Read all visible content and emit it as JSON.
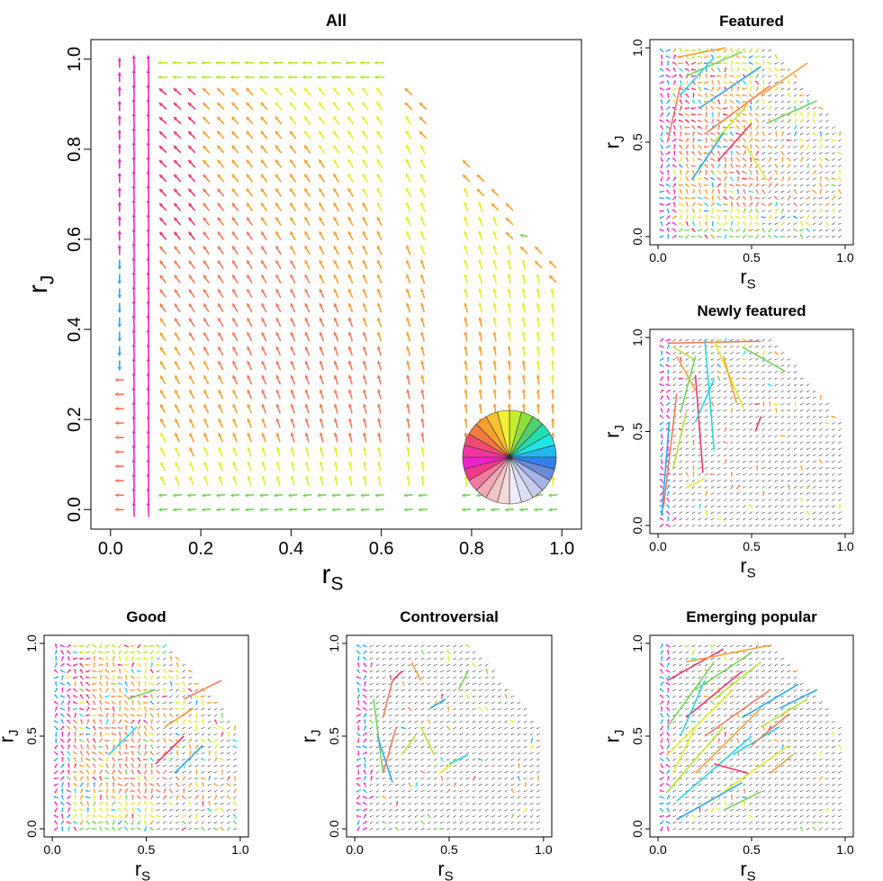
{
  "figure": {
    "colors": {
      "axis": "#000000",
      "small_arrow": "#555555"
    }
  },
  "chart_data": [
    {
      "id": "all",
      "type": "vector_field",
      "title": "All",
      "xlabel_main": "r",
      "xlabel_sub": "S",
      "ylabel_main": "r",
      "ylabel_sub": "J",
      "xlim": [
        0,
        1
      ],
      "ylim": [
        0,
        1
      ],
      "xticks": [
        0,
        0.2,
        0.4,
        0.6,
        0.8,
        1
      ],
      "xtick_labels": [
        "0.0",
        "0.2",
        "0.4",
        "0.6",
        "0.8",
        "1.0"
      ],
      "yticks": [
        0,
        0.2,
        0.4,
        0.6,
        0.8,
        1
      ],
      "ytick_labels": [
        "0.0",
        "0.2",
        "0.4",
        "0.6",
        "0.8",
        "1.0"
      ],
      "field": "all",
      "has_color_wheel": true
    },
    {
      "id": "featured",
      "type": "vector_field",
      "title": "Featured",
      "xlabel_main": "r",
      "xlabel_sub": "S",
      "ylabel_main": "r",
      "ylabel_sub": "J",
      "xlim": [
        0,
        1
      ],
      "ylim": [
        0,
        1
      ],
      "xticks": [
        0,
        0.5,
        1
      ],
      "xtick_labels": [
        "0.0",
        "0.5",
        "1.0"
      ],
      "yticks": [
        0,
        0.5,
        1
      ],
      "ytick_labels": [
        "0.0",
        "0.5",
        "1.0"
      ],
      "field": "featured",
      "long_segments": [
        [
          0.1,
          0.95,
          0.36,
          1.0
        ],
        [
          0.15,
          0.85,
          0.45,
          0.98
        ],
        [
          0.22,
          0.68,
          0.55,
          0.9
        ],
        [
          0.26,
          0.55,
          0.6,
          0.8
        ],
        [
          0.3,
          0.5,
          0.48,
          0.7
        ],
        [
          0.47,
          0.48,
          0.58,
          0.3
        ],
        [
          0.12,
          0.75,
          0.3,
          0.95
        ],
        [
          0.32,
          0.4,
          0.5,
          0.6
        ],
        [
          0.55,
          0.75,
          0.8,
          0.92
        ],
        [
          0.58,
          0.6,
          0.85,
          0.72
        ],
        [
          0.18,
          0.3,
          0.35,
          0.55
        ],
        [
          0.05,
          0.5,
          0.12,
          0.8
        ]
      ]
    },
    {
      "id": "newly_featured",
      "type": "vector_field",
      "title": "Newly featured",
      "xlabel_main": "r",
      "xlabel_sub": "S",
      "ylabel_main": "r",
      "ylabel_sub": "J",
      "xlim": [
        0,
        1
      ],
      "ylim": [
        0,
        1
      ],
      "xticks": [
        0,
        0.5,
        1
      ],
      "xtick_labels": [
        "0.0",
        "0.5",
        "1.0"
      ],
      "yticks": [
        0,
        0.5,
        1
      ],
      "ytick_labels": [
        "0.0",
        "0.5",
        "1.0"
      ],
      "field": "newly",
      "long_segments": [
        [
          0.05,
          0.97,
          0.55,
          0.98
        ],
        [
          0.08,
          0.95,
          0.2,
          0.88
        ],
        [
          0.3,
          0.98,
          0.46,
          0.62
        ],
        [
          0.25,
          0.99,
          0.3,
          0.4
        ],
        [
          0.2,
          0.8,
          0.24,
          0.28
        ],
        [
          0.35,
          0.9,
          0.42,
          0.65
        ],
        [
          0.45,
          0.95,
          0.68,
          0.82
        ],
        [
          0.02,
          0.05,
          0.06,
          0.55
        ],
        [
          0.03,
          0.1,
          0.1,
          0.7
        ],
        [
          0.08,
          0.3,
          0.15,
          0.6
        ],
        [
          0.15,
          0.2,
          0.25,
          0.25
        ],
        [
          0.2,
          0.55,
          0.3,
          0.78
        ],
        [
          0.52,
          0.5,
          0.55,
          0.58
        ],
        [
          0.1,
          0.9,
          0.2,
          0.72
        ],
        [
          0.12,
          0.6,
          0.2,
          0.9
        ]
      ]
    },
    {
      "id": "good",
      "type": "vector_field",
      "title": "Good",
      "xlabel_main": "r",
      "xlabel_sub": "S",
      "ylabel_main": "r",
      "ylabel_sub": "J",
      "xlim": [
        0,
        1
      ],
      "ylim": [
        0,
        1
      ],
      "xticks": [
        0,
        0.5,
        1
      ],
      "xtick_labels": [
        "0.0",
        "0.5",
        "1.0"
      ],
      "yticks": [
        0,
        0.5,
        1
      ],
      "ytick_labels": [
        "0.0",
        "0.5",
        "1.0"
      ],
      "field": "good",
      "long_segments": [
        [
          0.3,
          0.4,
          0.45,
          0.55
        ],
        [
          0.55,
          0.35,
          0.7,
          0.5
        ],
        [
          0.6,
          0.55,
          0.75,
          0.65
        ],
        [
          0.4,
          0.7,
          0.55,
          0.75
        ],
        [
          0.65,
          0.3,
          0.8,
          0.45
        ],
        [
          0.7,
          0.7,
          0.9,
          0.8
        ]
      ]
    },
    {
      "id": "controversial",
      "type": "vector_field",
      "title": "Controversial",
      "xlabel_main": "r",
      "xlabel_sub": "S",
      "ylabel_main": "r",
      "ylabel_sub": "J",
      "xlim": [
        0,
        1
      ],
      "ylim": [
        0,
        1
      ],
      "xticks": [
        0,
        0.5,
        1
      ],
      "xtick_labels": [
        "0.0",
        "0.5",
        "1.0"
      ],
      "yticks": [
        0,
        0.5,
        1
      ],
      "ytick_labels": [
        "0.0",
        "0.5",
        "1.0"
      ],
      "field": "controversial",
      "long_segments": [
        [
          0.1,
          0.7,
          0.15,
          0.3
        ],
        [
          0.12,
          0.5,
          0.2,
          0.25
        ],
        [
          0.15,
          0.3,
          0.22,
          0.55
        ],
        [
          0.35,
          0.55,
          0.42,
          0.4
        ],
        [
          0.45,
          0.3,
          0.55,
          0.38
        ],
        [
          0.5,
          0.35,
          0.6,
          0.4
        ],
        [
          0.2,
          0.8,
          0.25,
          0.85
        ],
        [
          0.3,
          0.9,
          0.35,
          0.8
        ],
        [
          0.55,
          0.75,
          0.6,
          0.85
        ],
        [
          0.4,
          0.65,
          0.48,
          0.7
        ],
        [
          0.15,
          0.6,
          0.2,
          0.8
        ],
        [
          0.25,
          0.4,
          0.32,
          0.5
        ]
      ]
    },
    {
      "id": "emerging_popular",
      "type": "vector_field",
      "title": "Emerging popular",
      "xlabel_main": "r",
      "xlabel_sub": "S",
      "ylabel_main": "r",
      "ylabel_sub": "J",
      "xlim": [
        0,
        1
      ],
      "ylim": [
        0,
        1
      ],
      "xticks": [
        0,
        0.5,
        1
      ],
      "xtick_labels": [
        "0.0",
        "0.5",
        "1.0"
      ],
      "yticks": [
        0,
        0.5,
        1
      ],
      "ytick_labels": [
        "0.0",
        "0.5",
        "1.0"
      ],
      "field": "emerging",
      "long_segments": [
        [
          0.05,
          0.2,
          0.35,
          0.55
        ],
        [
          0.05,
          0.4,
          0.4,
          0.75
        ],
        [
          0.1,
          0.15,
          0.5,
          0.5
        ],
        [
          0.15,
          0.6,
          0.45,
          0.85
        ],
        [
          0.2,
          0.3,
          0.55,
          0.65
        ],
        [
          0.05,
          0.55,
          0.3,
          0.9
        ],
        [
          0.1,
          0.05,
          0.45,
          0.25
        ],
        [
          0.25,
          0.5,
          0.6,
          0.75
        ],
        [
          0.3,
          0.7,
          0.55,
          0.9
        ],
        [
          0.35,
          0.2,
          0.7,
          0.45
        ],
        [
          0.4,
          0.4,
          0.65,
          0.55
        ],
        [
          0.05,
          0.8,
          0.35,
          0.97
        ],
        [
          0.15,
          0.9,
          0.6,
          0.99
        ],
        [
          0.2,
          0.75,
          0.5,
          0.95
        ],
        [
          0.45,
          0.6,
          0.75,
          0.78
        ],
        [
          0.5,
          0.45,
          0.7,
          0.62
        ],
        [
          0.55,
          0.55,
          0.8,
          0.7
        ],
        [
          0.08,
          0.3,
          0.2,
          0.55
        ],
        [
          0.12,
          0.5,
          0.25,
          0.8
        ],
        [
          0.3,
          0.35,
          0.48,
          0.3
        ],
        [
          0.6,
          0.3,
          0.72,
          0.4
        ],
        [
          0.35,
          0.1,
          0.55,
          0.2
        ],
        [
          0.65,
          0.65,
          0.85,
          0.75
        ]
      ]
    }
  ]
}
